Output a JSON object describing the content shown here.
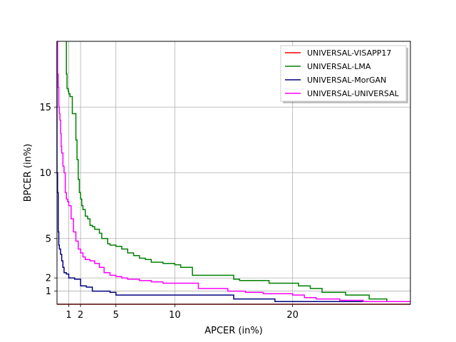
{
  "chart_data": {
    "type": "line",
    "xlabel": "APCER (in%)",
    "ylabel": "BPCER (in%)",
    "xlim": [
      0,
      30
    ],
    "ylim": [
      0,
      20
    ],
    "xticks": [
      1,
      2,
      5,
      10,
      20
    ],
    "yticks": [
      1,
      2,
      5,
      10,
      15
    ],
    "grid": true,
    "legend_position": "top-right",
    "series": [
      {
        "name": "UNIVERSAL-VISAPP17",
        "color": "#ff0000",
        "x": [
          0,
          30
        ],
        "y": [
          0,
          0
        ]
      },
      {
        "name": "UNIVERSAL-LMA",
        "color": "#008000",
        "x": [
          0.8,
          0.8,
          0.85,
          0.85,
          0.95,
          1.0,
          1.1,
          1.3,
          1.6,
          1.7,
          1.8,
          1.9,
          2.0,
          2.1,
          2.2,
          2.4,
          2.6,
          2.8,
          3.0,
          3.2,
          3.6,
          3.8,
          4.3,
          4.5,
          5.0,
          5.5,
          6.0,
          6.5,
          7.0,
          7.5,
          8.0,
          9.0,
          10.0,
          10.5,
          11.5,
          14.0,
          15.0,
          15.5,
          18.0,
          20.0,
          20.5,
          21.5,
          22.5,
          24.5,
          26.5,
          28.0,
          30.0
        ],
        "y": [
          20,
          17.5,
          16.8,
          16.4,
          16.2,
          16.0,
          15.8,
          14.5,
          12.5,
          11.0,
          9.5,
          8.5,
          8.0,
          7.5,
          7.2,
          6.7,
          6.5,
          6.0,
          5.9,
          5.7,
          5.4,
          5.0,
          4.6,
          4.5,
          4.4,
          4.2,
          3.9,
          3.7,
          3.5,
          3.4,
          3.2,
          3.1,
          3.0,
          2.8,
          2.2,
          2.2,
          1.9,
          1.8,
          1.6,
          1.6,
          1.4,
          1.2,
          0.9,
          0.7,
          0.4,
          0.2,
          0.2
        ]
      },
      {
        "name": "UNIVERSAL-MorGAN",
        "color": "#000080",
        "x": [
          0,
          0,
          0.05,
          0.1,
          0.15,
          0.2,
          0.3,
          0.4,
          0.5,
          0.6,
          0.8,
          1.0,
          1.5,
          2.0,
          2.5,
          3.0,
          4.0,
          4.5,
          5.0,
          8.0,
          10.0,
          14.0,
          15.0,
          18.0,
          18.5,
          30.0
        ],
        "y": [
          20,
          10.0,
          8.5,
          5.5,
          4.5,
          4.2,
          3.8,
          3.3,
          2.8,
          2.4,
          2.3,
          2.0,
          1.9,
          1.4,
          1.3,
          1.0,
          1.0,
          0.9,
          0.7,
          0.7,
          0.7,
          0.7,
          0.4,
          0.4,
          0.2,
          0.2
        ]
      },
      {
        "name": "UNIVERSAL-UNIVERSAL",
        "color": "#ff00ff",
        "x": [
          0,
          0.05,
          0.1,
          0.15,
          0.2,
          0.25,
          0.3,
          0.35,
          0.4,
          0.5,
          0.6,
          0.7,
          0.8,
          0.9,
          1.0,
          1.2,
          1.4,
          1.6,
          1.8,
          2.0,
          2.2,
          2.4,
          2.8,
          3.2,
          3.6,
          4.0,
          4.5,
          5.0,
          5.5,
          6.0,
          7.0,
          8.0,
          9.0,
          10.0,
          12.0,
          14.0,
          14.5,
          15.0,
          16.0,
          17.5,
          18.5,
          20.0,
          21.0,
          22.0,
          24.0,
          26.0,
          30.0
        ],
        "y": [
          20,
          17.5,
          16.5,
          15.0,
          14.5,
          14.0,
          13.0,
          12.0,
          11.5,
          10.5,
          10.0,
          8.5,
          8.0,
          7.8,
          7.5,
          6.5,
          5.5,
          4.8,
          4.2,
          3.9,
          3.6,
          3.4,
          3.3,
          3.1,
          2.8,
          2.4,
          2.2,
          2.1,
          2.0,
          1.9,
          1.8,
          1.7,
          1.6,
          1.6,
          1.2,
          1.2,
          1.0,
          1.0,
          0.9,
          0.8,
          0.8,
          0.7,
          0.5,
          0.4,
          0.3,
          0.2,
          0.2
        ]
      }
    ]
  }
}
